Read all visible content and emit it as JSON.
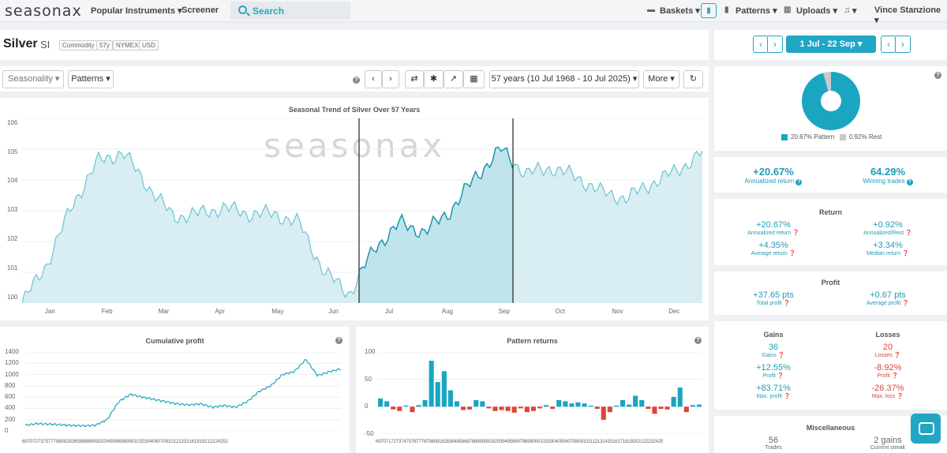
{
  "app": {
    "logo": "seasonax"
  },
  "topnav": {
    "popular": "Popular Instruments ▾",
    "screener": "Screener",
    "search_placeholder": "Search",
    "baskets": "Baskets ▾",
    "patterns": "Patterns ▾",
    "uploads": "Uploads ▾",
    "notifications": "▾",
    "user": "Vince Stanzione ▾"
  },
  "instrument": {
    "name": "Silver",
    "ticker": "SI",
    "tags": [
      "Commodity",
      "57y",
      "NYMEX",
      "USD"
    ]
  },
  "toolbar": {
    "seasonality": "Seasonality ▾",
    "patterns": "Patterns ▾",
    "range": "57 years (10 Jul 1968 - 10 Jul 2025) ▾",
    "more": "More ▾"
  },
  "date_range": {
    "label": "1 Jul - 22 Sep ▾"
  },
  "main_chart": {
    "title": "Seasonal Trend of Silver Over 57 Years",
    "watermark": "seasonax",
    "y_ticks": [
      "106",
      "105",
      "104",
      "103",
      "102",
      "101",
      "100"
    ],
    "x_ticks": [
      "Jan",
      "Feb",
      "Mar",
      "Apr",
      "May",
      "Jun",
      "Jul",
      "Aug",
      "Sep",
      "Oct",
      "Nov",
      "Dec"
    ]
  },
  "cumulative": {
    "title": "Cumulative profit",
    "y_ticks": [
      "1400",
      "1200",
      "1000",
      "800",
      "600",
      "400",
      "200",
      "0"
    ],
    "x_ticks": "6970727375777980828385868889919294959698990102030406070910121315161819212224252"
  },
  "pattern_returns": {
    "title": "Pattern returns",
    "y_ticks": [
      "100",
      "50",
      "0",
      "-50"
    ],
    "x_ticks": "697071727374757677787980818283848586878889909192939495969798990001020304050607080910111213141516171819202122232425"
  },
  "chart_data": [
    {
      "type": "line",
      "title": "Seasonal Trend of Silver Over 57 Years",
      "x": [
        "Jan",
        "Feb",
        "Mar",
        "Apr",
        "May",
        "Jun",
        "Jul",
        "Aug",
        "Sep",
        "Oct",
        "Nov",
        "Dec"
      ],
      "series": [
        {
          "values": [
            100.8,
            104.6,
            102.8,
            102.9,
            102.9,
            101.4,
            101.8,
            102.3,
            105.0,
            104.1,
            103.4,
            104.9
          ]
        }
      ],
      "ylim": [
        100,
        106
      ],
      "highlight_window": [
        "1 Jul",
        "22 Sep"
      ]
    },
    {
      "type": "line",
      "title": "Cumulative profit",
      "series": [
        {
          "values": [
            100,
            130,
            120,
            110,
            95,
            90,
            100,
            200,
            520,
            650,
            600,
            560,
            520,
            480,
            460,
            480,
            420,
            450,
            420,
            520,
            700,
            800,
            1000,
            1050,
            1270,
            980,
            1050,
            1100
          ]
        }
      ],
      "ylim": [
        0,
        1400
      ]
    },
    {
      "type": "bar",
      "title": "Pattern returns",
      "values": [
        15,
        10,
        -5,
        -8,
        2,
        -10,
        3,
        12,
        84,
        45,
        65,
        30,
        10,
        -6,
        -5,
        12,
        10,
        -3,
        -8,
        -6,
        -8,
        -11,
        -3,
        -10,
        -8,
        -3,
        3,
        -4,
        12,
        10,
        6,
        8,
        6,
        2,
        -4,
        -24,
        -10,
        2,
        12,
        4,
        20,
        12,
        -4,
        -13,
        -4,
        -5,
        18,
        35,
        -10,
        3,
        4
      ],
      "ylim": [
        -50,
        100
      ]
    }
  ],
  "pie": {
    "legend_pattern": "20.67% Pattern",
    "legend_rest": "0.92% Rest",
    "pattern_color": "#1aa6c1",
    "rest_color": "#c8cacd"
  },
  "summary": {
    "annualized": "+20.67%",
    "annualized_label": "Annualized return",
    "winning": "64.29%",
    "winning_label": "Winning trades"
  },
  "returns": {
    "title": "Return",
    "ann_pattern": "+20.67%",
    "ann_pattern_label": "Annualized return",
    "ann_rest": "+0.92%",
    "ann_rest_label": "Annualized/Rest",
    "avg": "+4.35%",
    "avg_label": "Average return",
    "median": "+3.34%",
    "median_label": "Median return"
  },
  "profit": {
    "title": "Profit",
    "total": "+37.65 pts",
    "total_label": "Total profit",
    "avg": "+0.67 pts",
    "avg_label": "Average profit"
  },
  "gains_losses": {
    "gains_title": "Gains",
    "losses_title": "Losses",
    "gains": "36",
    "gains_label": "Gains",
    "losses": "20",
    "losses_label": "Losses",
    "gain_profit": "+12.55%",
    "gain_profit_label": "Profit",
    "loss_profit": "-8.92%",
    "loss_profit_label": "Profit",
    "max_profit": "+83.71%",
    "max_profit_label": "Max. profit",
    "max_loss": "-26.37%",
    "max_loss_label": "Max. loss"
  },
  "misc": {
    "title": "Miscellaneous",
    "trades": "56",
    "trades_label": "Trades",
    "streak": "2 gains",
    "streak_label": "Current streak"
  }
}
